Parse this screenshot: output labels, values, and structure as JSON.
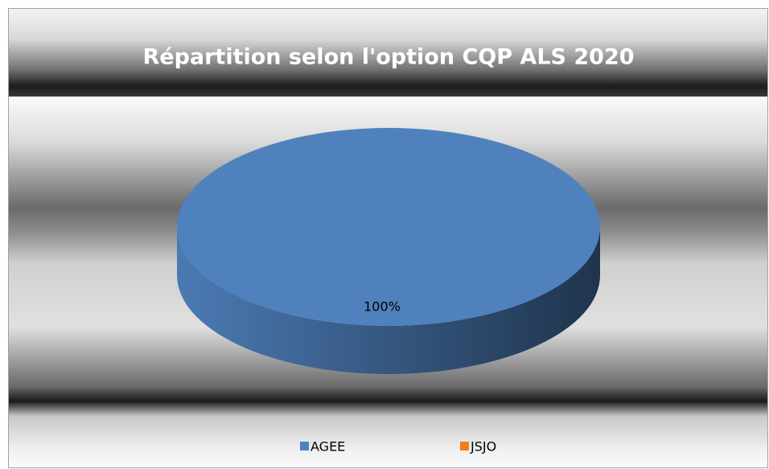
{
  "chart_data": {
    "type": "pie",
    "title": "Répartition selon l'option CQP ALS 2020",
    "categories": [
      "AGEE",
      "JSJO"
    ],
    "values": [
      100,
      0
    ],
    "value_labels": [
      "100%",
      null
    ],
    "colors": [
      "#4f81bd",
      "#f07e1a"
    ],
    "legend": "bottom"
  }
}
